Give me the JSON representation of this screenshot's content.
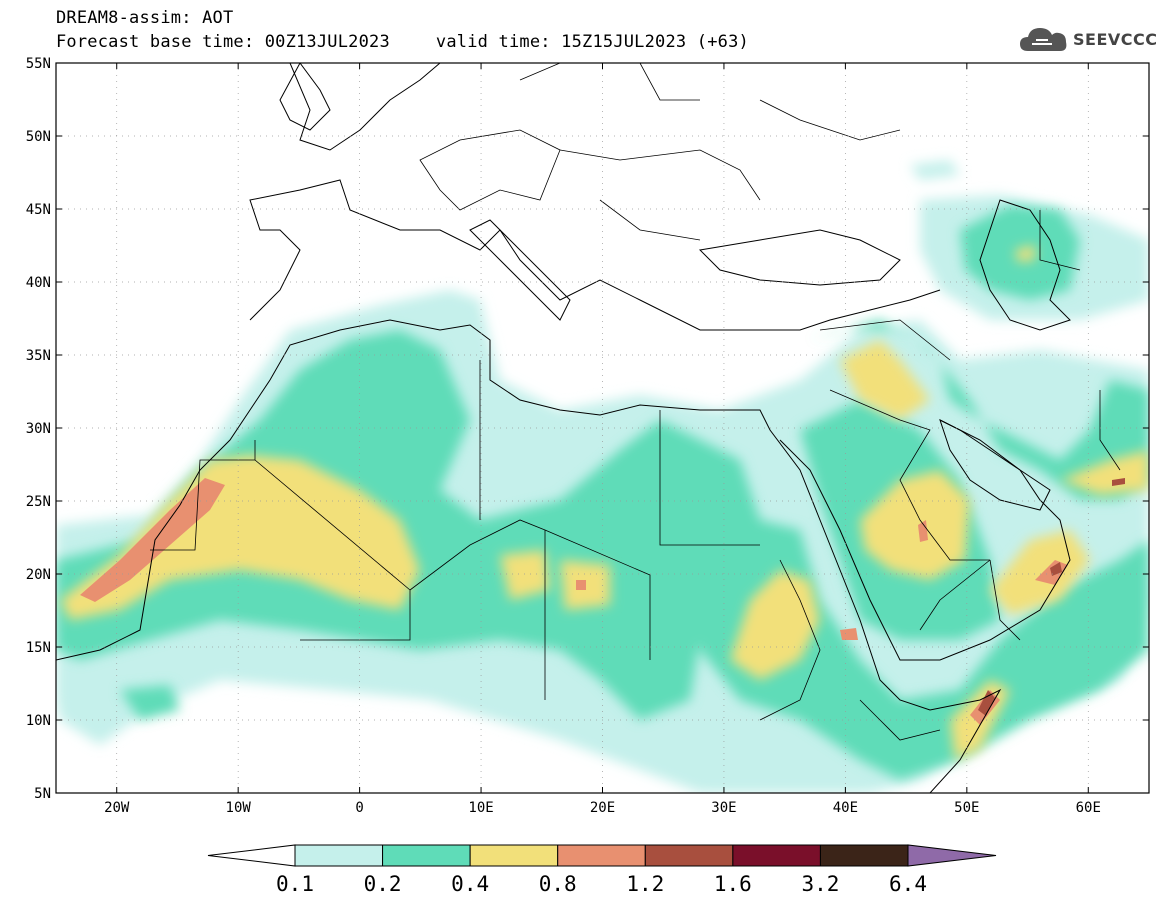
{
  "title": {
    "model_field": "DREAM8-assim: AOT",
    "base_time": "Forecast base time: 00Z13JUL2023",
    "valid_time": "valid time: 15Z15JUL2023 (+63)"
  },
  "logo": {
    "text": "SEEVCCC",
    "icon": "cloud-icon"
  },
  "map": {
    "lon_range": [
      -25,
      65
    ],
    "lat_range": [
      5,
      55
    ],
    "lon_ticks": [
      {
        "value": -20,
        "label": "20W"
      },
      {
        "value": -10,
        "label": "10W"
      },
      {
        "value": 0,
        "label": "0"
      },
      {
        "value": 10,
        "label": "10E"
      },
      {
        "value": 20,
        "label": "20E"
      },
      {
        "value": 30,
        "label": "30E"
      },
      {
        "value": 40,
        "label": "40E"
      },
      {
        "value": 50,
        "label": "50E"
      },
      {
        "value": 60,
        "label": "60E"
      }
    ],
    "lat_ticks": [
      {
        "value": 5,
        "label": "5N"
      },
      {
        "value": 10,
        "label": "10N"
      },
      {
        "value": 15,
        "label": "15N"
      },
      {
        "value": 20,
        "label": "20N"
      },
      {
        "value": 25,
        "label": "25N"
      },
      {
        "value": 30,
        "label": "30N"
      },
      {
        "value": 35,
        "label": "35N"
      },
      {
        "value": 40,
        "label": "40N"
      },
      {
        "value": 45,
        "label": "45N"
      },
      {
        "value": 50,
        "label": "50N"
      },
      {
        "value": 55,
        "label": "55N"
      }
    ],
    "grid": true
  },
  "colorbar": {
    "labels": [
      "0.1",
      "0.2",
      "0.4",
      "0.8",
      "1.2",
      "1.6",
      "3.2",
      "6.4"
    ],
    "colors": [
      "#c5f0eb",
      "#5fdcb8",
      "#f2e07a",
      "#e89070",
      "#a84f3e",
      "#7a0f2a",
      "#3b2418"
    ],
    "under_color": "#ffffff",
    "over_color": "#8f6aa8"
  }
}
